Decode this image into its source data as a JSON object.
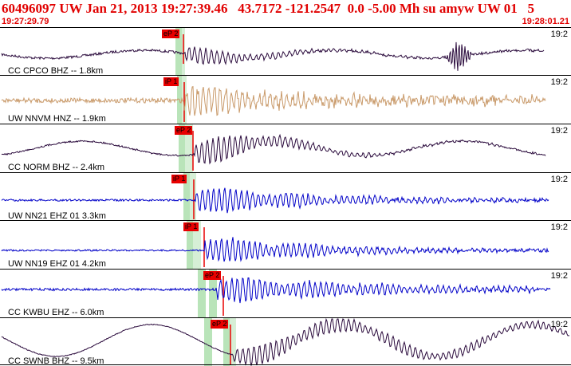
{
  "header": {
    "title": "60496097 UW Jan 21, 2013 19:27:39.46   43.7172 -121.2547  0.0 -5.00 Mh su amyw UW 01   5",
    "time_start": "19:27:29.79",
    "time_end": "19:28:01.21"
  },
  "traces": [
    {
      "station": "CC CPCO BHZ -- 1.8km",
      "pick": "eP 2",
      "corner": "19:2",
      "color": "#2a0a3c"
    },
    {
      "station": "UW NNVM HNZ -- 1.9km",
      "pick": "iP 1",
      "corner": "19:2",
      "color": "#c99a6a"
    },
    {
      "station": "CC NORM BHZ -- 2.4km",
      "pick": "eP 2",
      "corner": "19:2",
      "color": "#2a0a3c"
    },
    {
      "station": "UW NN21 EHZ 01 3.3km",
      "pick": "iP 1",
      "corner": "19:2",
      "color": "#0000c8"
    },
    {
      "station": "UW NN19 EHZ 01 4.2km",
      "pick": "iP 1",
      "corner": "19:2",
      "color": "#0000c8"
    },
    {
      "station": "CC KWBU EHZ -- 6.0km",
      "pick": "eP 2",
      "corner": "19:2",
      "color": "#0000c8"
    },
    {
      "station": "CC SWNB BHZ -- 9.5km",
      "pick": "eP 2",
      "corner": "19:2",
      "color": "#2a0a3c"
    }
  ]
}
